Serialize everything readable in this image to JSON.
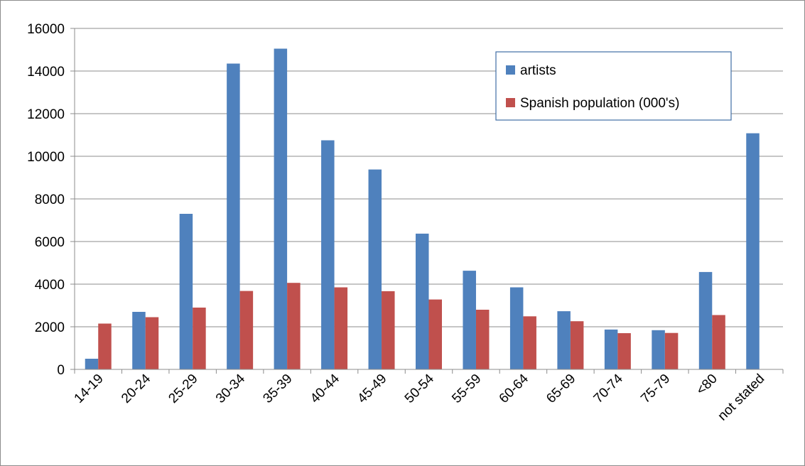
{
  "chart_data": {
    "type": "bar",
    "categories": [
      "14-19",
      "20-24",
      "25-29",
      "30-34",
      "35-39",
      "40-44",
      "45-49",
      "50-54",
      "55-59",
      "60-64",
      "65-69",
      "70-74",
      "75-79",
      "<80",
      "not stated"
    ],
    "series": [
      {
        "name": "artists",
        "color": "#4f81bd",
        "values": [
          500,
          2700,
          7300,
          14350,
          15050,
          10750,
          9380,
          6370,
          4630,
          3850,
          2730,
          1870,
          1840,
          4570,
          11080
        ]
      },
      {
        "name": "Spanish population (000's)",
        "color": "#c0504d",
        "values": [
          2150,
          2450,
          2900,
          3680,
          4060,
          3850,
          3670,
          3280,
          2800,
          2490,
          2260,
          1700,
          1710,
          2550,
          null
        ]
      }
    ],
    "ylim": [
      0,
      16000
    ],
    "yticks": [
      0,
      2000,
      4000,
      6000,
      8000,
      10000,
      12000,
      14000,
      16000
    ],
    "grid": true,
    "legend_position": "top-right"
  }
}
